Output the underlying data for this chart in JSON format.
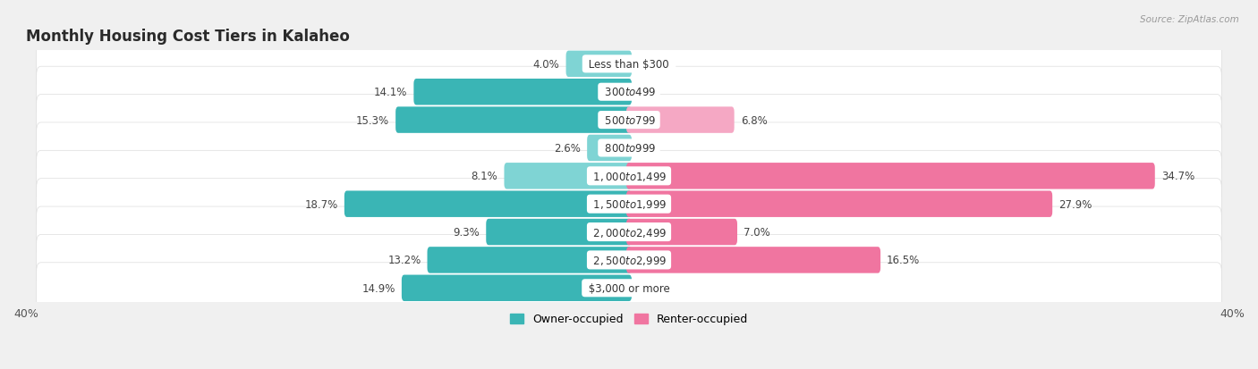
{
  "title": "Monthly Housing Cost Tiers in Kalaheo",
  "source": "Source: ZipAtlas.com",
  "categories": [
    "Less than $300",
    "$300 to $499",
    "$500 to $799",
    "$800 to $999",
    "$1,000 to $1,499",
    "$1,500 to $1,999",
    "$2,000 to $2,499",
    "$2,500 to $2,999",
    "$3,000 or more"
  ],
  "owner_values": [
    4.0,
    14.1,
    15.3,
    2.6,
    8.1,
    18.7,
    9.3,
    13.2,
    14.9
  ],
  "renter_values": [
    0.0,
    0.0,
    6.8,
    0.0,
    34.7,
    27.9,
    7.0,
    16.5,
    0.0
  ],
  "owner_color_dark": "#3ab5b5",
  "owner_color_light": "#7fd4d4",
  "renter_color_dark": "#f075a0",
  "renter_color_light": "#f5a8c4",
  "axis_limit": 40.0,
  "background_color": "#f0f0f0",
  "row_bg_color": "#ffffff",
  "title_fontsize": 12,
  "label_fontsize": 8.5,
  "value_fontsize": 8.5,
  "tick_fontsize": 9,
  "legend_fontsize": 9,
  "bar_height": 0.58
}
